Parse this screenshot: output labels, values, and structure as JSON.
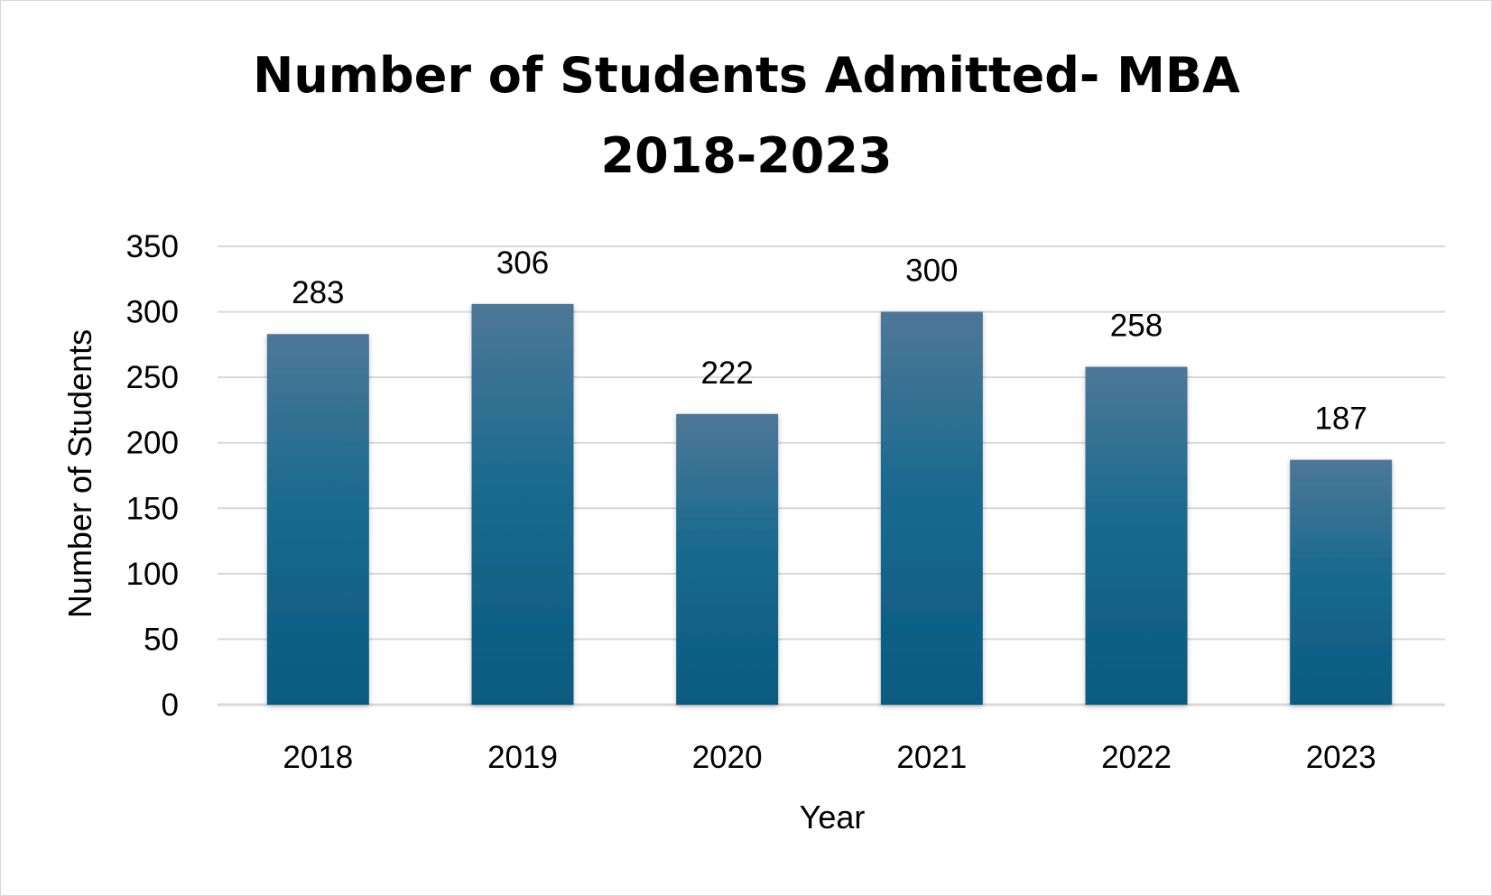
{
  "chart_data": {
    "type": "bar",
    "title_lines": [
      "Number of Students Admitted- MBA",
      "2018-2023"
    ],
    "categories": [
      "2018",
      "2019",
      "2020",
      "2021",
      "2022",
      "2023"
    ],
    "values": [
      283,
      306,
      222,
      300,
      258,
      187
    ],
    "data_labels": [
      "283",
      "306",
      "222",
      "300",
      "258",
      "187"
    ],
    "xlabel": "Year",
    "ylabel": "Number of Students",
    "ylim": [
      0,
      350
    ],
    "yticks": [
      "0",
      "50",
      "100",
      "150",
      "200",
      "250",
      "300",
      "350"
    ],
    "grid": true,
    "legend": "none",
    "colors": {
      "bar_top": "#4e7798",
      "bar_bottom": "#0b5a80",
      "grid": "#d9d9d9",
      "axis": "#d9d9d9"
    }
  }
}
